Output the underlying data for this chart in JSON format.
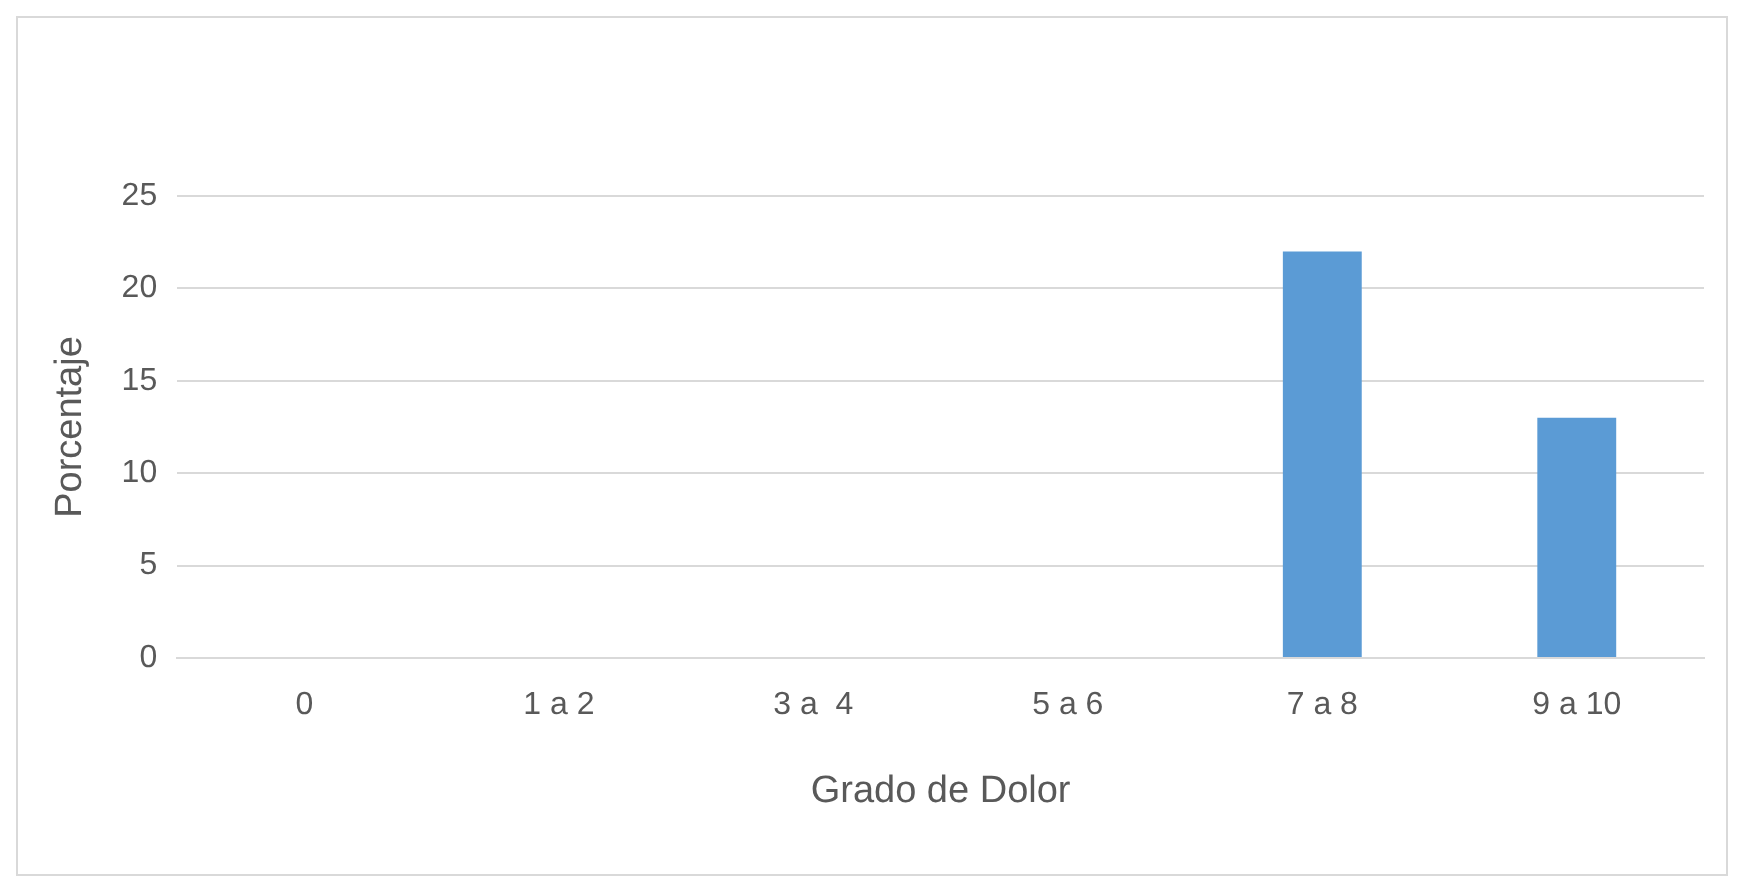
{
  "chart_data": {
    "type": "bar",
    "xlabel": "Grado de Dolor",
    "ylabel": "Porcentaje",
    "categories": [
      "0",
      "1 a 2",
      "3 a  4",
      "5 a 6",
      "7 a 8",
      "9 a 10"
    ],
    "values": [
      0,
      0,
      0,
      0,
      22,
      13
    ],
    "color": "#5b9bd5",
    "ylim": [
      0,
      25
    ],
    "yticks": [
      0,
      5,
      10,
      15,
      20,
      25
    ],
    "grid": "y"
  }
}
